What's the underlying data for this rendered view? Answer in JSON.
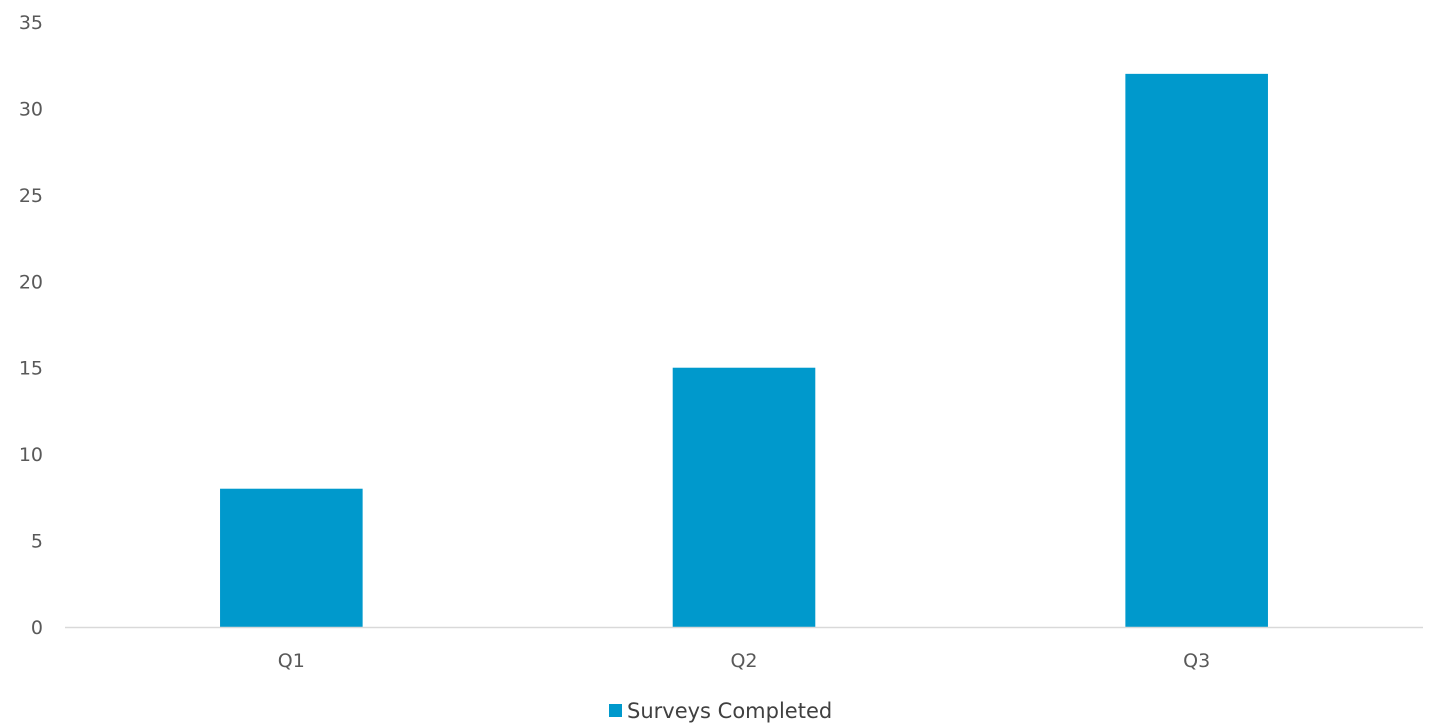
{
  "chart_data": {
    "type": "bar",
    "title": "",
    "xlabel": "",
    "ylabel": "",
    "categories": [
      "Q1",
      "Q2",
      "Q3"
    ],
    "series": [
      {
        "name": "Surveys Completed",
        "values": [
          8,
          15,
          32
        ],
        "color": "#0099CC"
      }
    ],
    "ylim": [
      0,
      35
    ],
    "yticks": [
      0,
      5,
      10,
      15,
      20,
      25,
      30,
      35
    ],
    "grid": false,
    "legend": "bottom-center",
    "axis_color": "#D9D9D9"
  }
}
